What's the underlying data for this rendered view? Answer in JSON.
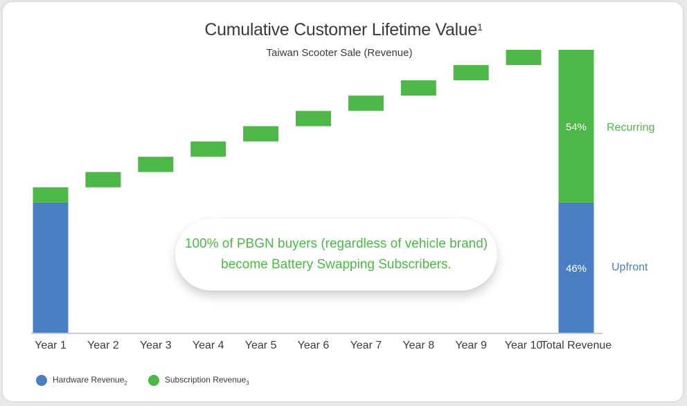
{
  "title": "Cumulative Customer Lifetime Value",
  "title_sup": "1",
  "subtitle": "Taiwan Scooter Sale (Revenue)",
  "callout": {
    "line1": "100% of PBGN buyers (regardless of vehicle brand)",
    "line2": "become Battery Swapping Subscribers."
  },
  "legend": {
    "hardware": "Hardware Revenue",
    "hardware_sub": "2",
    "subscription": "Subscription Revenue",
    "subscription_sub": "3"
  },
  "labels": {
    "recurring": "Recurring",
    "upfront": "Upfront"
  },
  "colors": {
    "hardware": "#4a7ec3",
    "subscription": "#4db847",
    "axis": "#bbbbbb",
    "text": "#3a3a3a"
  },
  "chart_data": {
    "type": "bar",
    "subtype": "waterfall",
    "title": "Cumulative Customer Lifetime Value",
    "subtitle": "Taiwan Scooter Sale (Revenue)",
    "categories": [
      "Year 1",
      "Year 2",
      "Year 3",
      "Year 4",
      "Year 5",
      "Year 6",
      "Year 7",
      "Year 8",
      "Year 9",
      "Year 10",
      "Total Revenue"
    ],
    "series": [
      {
        "name": "Hardware Revenue",
        "values": [
          46,
          0,
          0,
          0,
          0,
          0,
          0,
          0,
          0,
          0,
          46
        ]
      },
      {
        "name": "Subscription Revenue",
        "values": [
          5.4,
          5.4,
          5.4,
          5.4,
          5.4,
          5.4,
          5.4,
          5.4,
          5.4,
          5.4,
          54
        ]
      }
    ],
    "total_labels": [
      "46%",
      "54%"
    ],
    "ylim": [
      0,
      100
    ],
    "xlabel": "",
    "ylabel": "",
    "grid": false,
    "legend": "bottom-left"
  }
}
